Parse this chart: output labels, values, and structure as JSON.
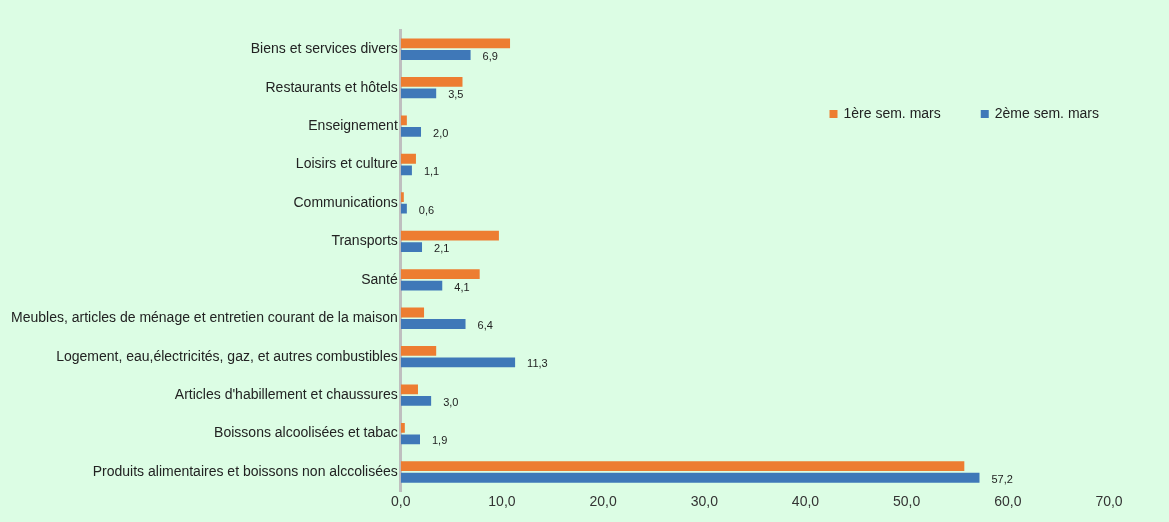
{
  "chart_data": {
    "type": "bar",
    "orientation": "horizontal",
    "categories": [
      "Biens et services divers",
      "Restaurants et hôtels",
      "Enseignement",
      "Loisirs et culture",
      "Communications",
      "Transports",
      "Santé",
      "Meubles, articles de ménage et entretien courant de la maison",
      "Logement, eau,électricités, gaz, et autres combustibles",
      "Articles d'habillement et chaussures",
      "Boissons alcoolisées et tabac",
      "Produits alimentaires et boissons non alccolisées"
    ],
    "series": [
      {
        "name": "1ère sem. mars",
        "color": "#ed7d31",
        "values": [
          10.8,
          6.1,
          0.6,
          1.5,
          0.3,
          9.7,
          7.8,
          2.3,
          3.5,
          1.7,
          0.4,
          55.7
        ]
      },
      {
        "name": "2ème sem. mars",
        "color": "#3f78b8",
        "values": [
          6.9,
          3.5,
          2.0,
          1.1,
          0.6,
          2.1,
          4.1,
          6.4,
          11.3,
          3.0,
          1.9,
          57.2
        ],
        "value_labels": [
          "6,9",
          "3,5",
          "2,0",
          "1,1",
          "0,6",
          "2,1",
          "4,1",
          "6,4",
          "11,3",
          "3,0",
          "1,9",
          "57,2"
        ]
      }
    ],
    "xlim": [
      0,
      70
    ],
    "xticks": [
      {
        "value": 0,
        "label": "0,0"
      },
      {
        "value": 10,
        "label": "10,0"
      },
      {
        "value": 20,
        "label": "20,0"
      },
      {
        "value": 30,
        "label": "30,0"
      },
      {
        "value": 40,
        "label": "40,0"
      },
      {
        "value": 50,
        "label": "50,0"
      },
      {
        "value": 60,
        "label": "60,0"
      },
      {
        "value": 70,
        "label": "70,0"
      }
    ],
    "grid": false,
    "legend": "top right"
  }
}
